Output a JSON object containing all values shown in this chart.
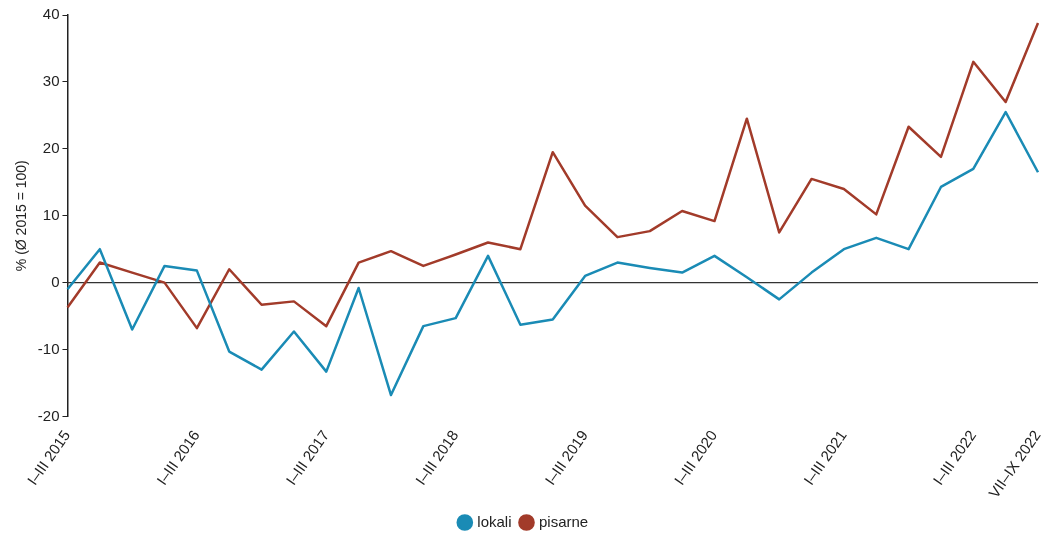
{
  "chart_data": {
    "type": "line",
    "ylabel": "% (Ø 2015 = 100)",
    "categories": [
      "I–III 2015",
      null,
      null,
      null,
      "I–III 2016",
      null,
      null,
      null,
      "I–III 2017",
      null,
      null,
      null,
      "I–III 2018",
      null,
      null,
      null,
      "I–III 2019",
      null,
      null,
      null,
      "I–III 2020",
      null,
      null,
      null,
      "I–III 2021",
      null,
      null,
      null,
      "I–III 2022",
      null,
      "VII–IX 2022"
    ],
    "series": [
      {
        "name": "lokali",
        "color": "#1a8bb5",
        "values": [
          -1,
          5,
          -7,
          2.5,
          1.8,
          -10.3,
          -13,
          -7.3,
          -13.3,
          -0.8,
          -16.8,
          -6.5,
          -5.3,
          4,
          -6.3,
          -5.5,
          1,
          3,
          2.2,
          1.5,
          4,
          0.8,
          -2.5,
          1.5,
          5,
          6.7,
          5,
          14.3,
          17,
          25.5,
          16.5
        ]
      },
      {
        "name": "pisarne",
        "color": "#a23b2a",
        "values": [
          -3.7,
          3,
          1.5,
          0,
          -6.8,
          2,
          -3.3,
          -2.8,
          -6.5,
          3,
          4.7,
          2.5,
          4.2,
          6,
          5,
          19.5,
          11.5,
          6.8,
          7.7,
          10.7,
          9.2,
          24.5,
          7.5,
          15.5,
          14,
          10.2,
          23.3,
          18.8,
          33,
          27,
          38.8
        ]
      }
    ],
    "ylim": [
      -20,
      40
    ],
    "yticks": [
      -20,
      -10,
      0,
      10,
      20,
      30,
      40
    ],
    "ref_lines": [
      {
        "axis": "y",
        "value": 0,
        "color": "#333333"
      }
    ],
    "grid": false,
    "legend": "bottom",
    "marker": "none",
    "line_style": "solid"
  }
}
